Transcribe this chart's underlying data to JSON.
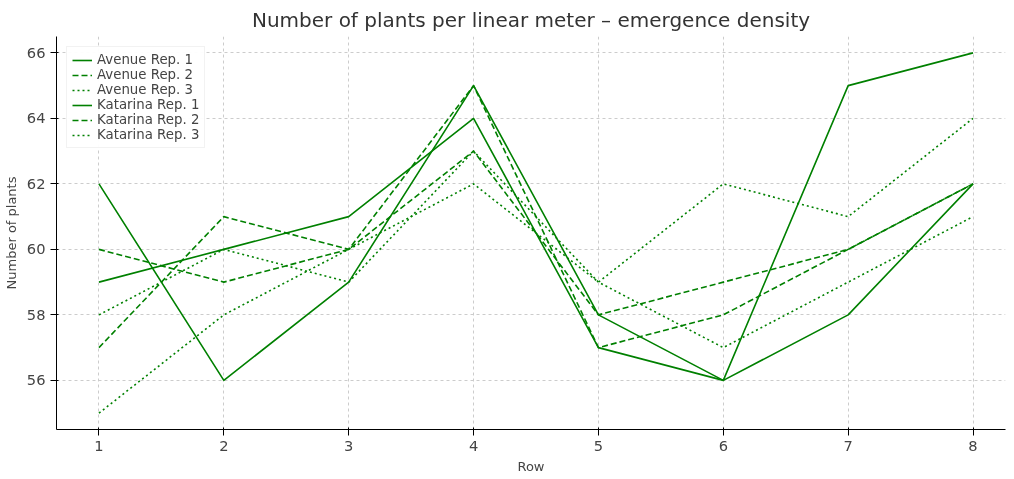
{
  "chart_data": {
    "type": "line",
    "title": "Number of plants per linear meter – emergence density",
    "xlabel": "Row",
    "ylabel": "Number of plants",
    "x": [
      1,
      2,
      3,
      4,
      5,
      6,
      7,
      8
    ],
    "xlim": [
      0.66,
      8.26
    ],
    "xticks": [
      1,
      2,
      3,
      4,
      5,
      6,
      7,
      8
    ],
    "ylim": [
      54.5,
      66.5
    ],
    "yticks": [
      56,
      58,
      60,
      62,
      64,
      66
    ],
    "grid": true,
    "legend": "top left",
    "series": [
      {
        "name": "Avenue Rep. 1",
        "color": "#008000",
        "line_style": "solid",
        "values": [
          62,
          56,
          59,
          65,
          58,
          56,
          65,
          66
        ]
      },
      {
        "name": "Avenue Rep. 2",
        "color": "#008000",
        "line_style": "dashed",
        "values": [
          60,
          59,
          60,
          63,
          58,
          59,
          60,
          62
        ]
      },
      {
        "name": "Avenue Rep. 3",
        "color": "#008000",
        "line_style": "dotted",
        "values": [
          58,
          60,
          59,
          63,
          59,
          57,
          59,
          61
        ]
      },
      {
        "name": "Katarina Rep. 1",
        "color": "#008000",
        "line_style": "solid",
        "values": [
          59,
          60,
          61,
          64,
          57,
          56,
          58,
          62
        ]
      },
      {
        "name": "Katarina Rep. 2",
        "color": "#008000",
        "line_style": "dashed",
        "values": [
          57,
          61,
          60,
          65,
          57,
          58,
          60,
          62
        ]
      },
      {
        "name": "Katarina Rep. 3",
        "color": "#008000",
        "line_style": "dotted",
        "values": [
          55,
          58,
          60,
          62,
          59,
          62,
          61,
          64
        ]
      }
    ]
  }
}
